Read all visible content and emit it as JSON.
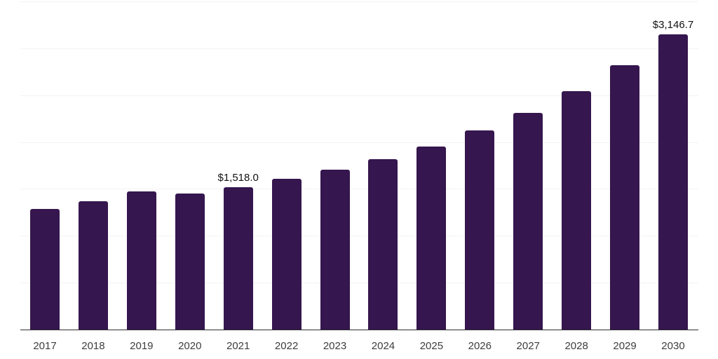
{
  "chart_data": {
    "type": "bar",
    "title": "",
    "xlabel": "",
    "ylabel": "",
    "categories": [
      "2017",
      "2018",
      "2019",
      "2020",
      "2021",
      "2022",
      "2023",
      "2024",
      "2025",
      "2026",
      "2027",
      "2028",
      "2029",
      "2030"
    ],
    "values": [
      1285,
      1370,
      1475,
      1450,
      1518.0,
      1605,
      1705,
      1820,
      1955,
      2125,
      2310,
      2545,
      2820,
      3146.7
    ],
    "annotations": [
      {
        "category": "2021",
        "text": "$1,518.0"
      },
      {
        "category": "2030",
        "text": "$3,146.7"
      }
    ],
    "ylim": [
      0,
      3500
    ],
    "gridline_step": 500,
    "grid": true,
    "legend": false,
    "y_axis_labels_visible": false,
    "colors": {
      "bar": "#35164E",
      "background": "#ffffff",
      "gridline": "#f3f3f3",
      "axis_line": "#2e2e2e",
      "tick_label": "#3d3d3d",
      "annotation": "#111111"
    }
  }
}
